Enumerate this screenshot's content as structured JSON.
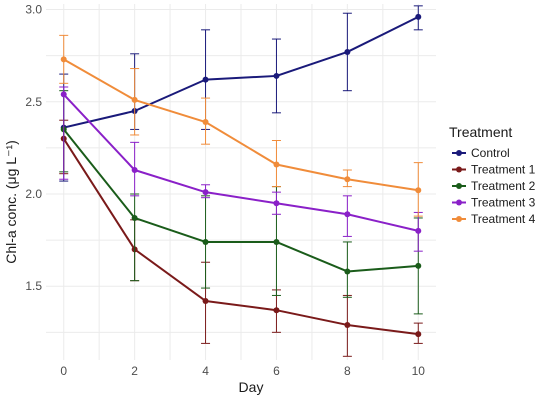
{
  "chart_data": {
    "type": "line",
    "xlabel": "Day",
    "ylabel": "Chl-a conc. (μg L⁻¹)",
    "x": [
      0,
      2,
      4,
      6,
      8,
      10
    ],
    "xlim": [
      -0.5,
      10.5
    ],
    "ylim": [
      1.1,
      3.03
    ],
    "x_ticks": [
      0,
      2,
      4,
      6,
      8,
      10
    ],
    "y_ticks": [
      1.5,
      2.0,
      2.5,
      3.0
    ],
    "y_tick_labels": [
      "1.5",
      "2.0",
      "2.5",
      "3.0"
    ],
    "grid": true,
    "legend": {
      "title": "Treatment",
      "position": "right"
    },
    "series": [
      {
        "name": "Control",
        "color": "#1a1a7a",
        "values": [
          2.36,
          2.45,
          2.62,
          2.64,
          2.77,
          2.96
        ],
        "err_low": [
          2.07,
          2.35,
          2.35,
          2.44,
          2.56,
          2.89
        ],
        "err_high": [
          2.65,
          2.76,
          2.89,
          2.84,
          2.98,
          3.02
        ]
      },
      {
        "name": "Treatment 1",
        "color": "#7a1a1a",
        "values": [
          2.3,
          1.7,
          1.42,
          1.37,
          1.29,
          1.24
        ],
        "err_low": [
          2.11,
          1.53,
          1.19,
          1.25,
          1.12,
          1.19
        ],
        "err_high": [
          2.4,
          1.86,
          1.63,
          1.48,
          1.45,
          1.3
        ]
      },
      {
        "name": "Treatment 2",
        "color": "#1a5c1a",
        "values": [
          2.35,
          1.87,
          1.74,
          1.74,
          1.58,
          1.61
        ],
        "err_low": [
          2.12,
          1.53,
          1.49,
          1.45,
          1.44,
          1.35
        ],
        "err_high": [
          2.56,
          2.0,
          1.99,
          2.04,
          1.74,
          1.87
        ]
      },
      {
        "name": "Treatment 3",
        "color": "#8a20c8",
        "values": [
          2.54,
          2.13,
          2.01,
          1.95,
          1.89,
          1.8
        ],
        "err_low": [
          2.08,
          1.99,
          1.98,
          1.89,
          1.77,
          1.69
        ],
        "err_high": [
          2.58,
          2.28,
          2.05,
          2.01,
          1.99,
          1.9
        ]
      },
      {
        "name": "Treatment 4",
        "color": "#f08c3a",
        "values": [
          2.73,
          2.51,
          2.39,
          2.16,
          2.08,
          2.02
        ],
        "err_low": [
          2.6,
          2.32,
          2.27,
          2.04,
          2.04,
          1.88
        ],
        "err_high": [
          2.86,
          2.68,
          2.52,
          2.29,
          2.13,
          2.17
        ]
      }
    ]
  }
}
